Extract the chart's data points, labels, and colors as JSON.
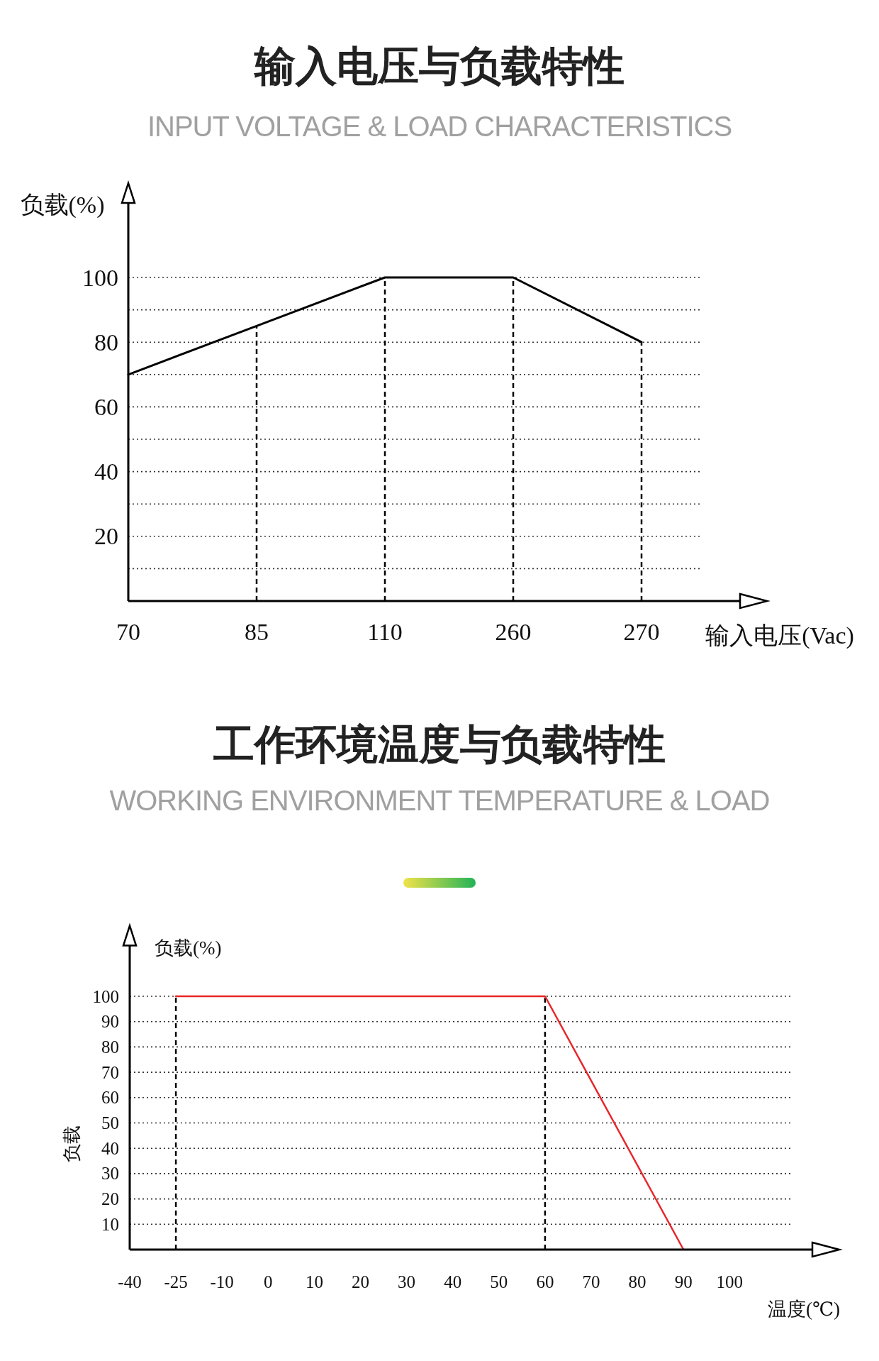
{
  "chart_data": [
    {
      "type": "line",
      "title": "输入电压与负载特性",
      "subtitle": "INPUT VOLTAGE & LOAD CHARACTERISTICS",
      "xlabel": "输入电压(Vac)",
      "ylabel": "负载(%)",
      "categories": [
        "70",
        "85",
        "110",
        "260",
        "270"
      ],
      "series": [
        {
          "color": "#000000",
          "values": [
            70,
            85,
            100,
            100,
            80
          ]
        }
      ],
      "ylim": [
        0,
        123
      ],
      "yticks": [
        {
          "value": 10,
          "label": null
        },
        20,
        {
          "value": 30,
          "label": null
        },
        40,
        {
          "value": 50,
          "label": null
        },
        60,
        {
          "value": 70,
          "label": null
        },
        80,
        {
          "value": 90,
          "label": null
        },
        100
      ],
      "grid": "y",
      "line_style": "solid",
      "ref_lines": [
        {
          "axis": "x",
          "value": "85",
          "line_style": "dashed"
        },
        {
          "axis": "x",
          "value": "110",
          "line_style": "dashed"
        },
        {
          "axis": "x",
          "value": "260",
          "line_style": "dashed"
        },
        {
          "axis": "x",
          "value": "270",
          "line_style": "dashed"
        }
      ]
    },
    {
      "type": "line",
      "title": "工作环境温度与负载特性",
      "subtitle": "WORKING ENVIRONMENT TEMPERATURE & LOAD",
      "xlabel": "温度(℃)",
      "ylabel": "负载",
      "annotations": [
        "负载(%)"
      ],
      "categories": [
        "-40",
        "-25",
        "-10",
        "0",
        "10",
        "20",
        "30",
        "40",
        "50",
        "60",
        "70",
        "80",
        "90",
        "100"
      ],
      "series": [
        {
          "color": "#e8262a",
          "x": [
            "-25",
            "60",
            "90"
          ],
          "values": [
            100,
            100,
            0
          ]
        }
      ],
      "ylim": [
        0,
        120
      ],
      "yticks": [
        10,
        20,
        30,
        40,
        50,
        60,
        70,
        80,
        90,
        100
      ],
      "grid": "y",
      "line_style": "solid",
      "ref_lines": [
        {
          "axis": "x",
          "value": "-25",
          "line_style": "dashed"
        },
        {
          "axis": "x",
          "value": "60",
          "line_style": "dashed"
        }
      ]
    }
  ]
}
